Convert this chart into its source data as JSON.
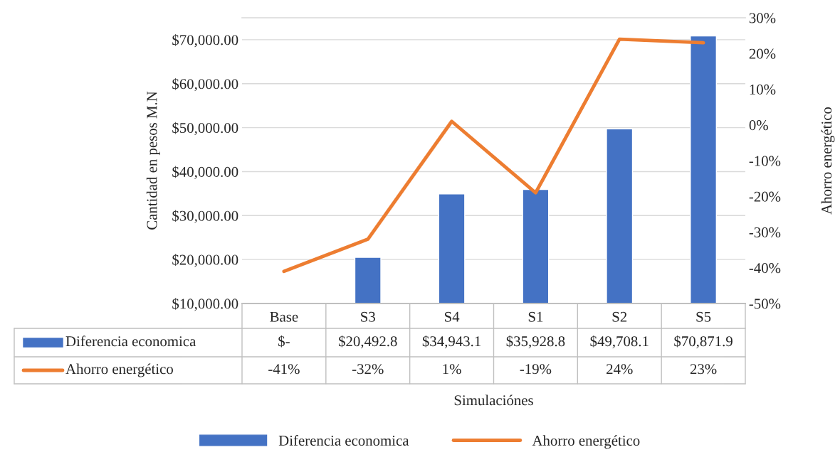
{
  "chart_data": {
    "type": "bar",
    "categories": [
      "Base",
      "S3",
      "S4",
      "S1",
      "S2",
      "S5"
    ],
    "xlabel": "Simulaciónes",
    "ylabel": "Cantidad en pesos M.N",
    "y2label": "Ahorro energético",
    "series": [
      {
        "name": "Diferencia economica",
        "color": "#4472c4",
        "values": [
          null,
          20492.8,
          34943.1,
          35928.8,
          49708.1,
          70871.9
        ],
        "value_labels": [
          "$-",
          "$20,492.8",
          "$34,943.1",
          "$35,928.8",
          "$49,708.1",
          "$70,871.9"
        ]
      },
      {
        "name": "Ahorro energético",
        "type": "line",
        "axis": "y2",
        "color": "#ed7d31",
        "values": [
          -41,
          -32,
          1,
          -19,
          24,
          23
        ],
        "value_labels": [
          "-41%",
          "-32%",
          "1%",
          "-19%",
          "24%",
          "23%"
        ]
      }
    ],
    "ylim": [
      10000,
      75000
    ],
    "yticks": [
      {
        "value": 10000,
        "label": "$10,000.00"
      },
      {
        "value": 20000,
        "label": "$20,000.00"
      },
      {
        "value": 30000,
        "label": "$30,000.00"
      },
      {
        "value": 40000,
        "label": "$40,000.00"
      },
      {
        "value": 50000,
        "label": "$50,000.00"
      },
      {
        "value": 60000,
        "label": "$60,000.00"
      },
      {
        "value": 70000,
        "label": "$70,000.00"
      }
    ],
    "y2lim": [
      -50,
      30
    ],
    "y2ticks": [
      {
        "value": -50,
        "label": "-50%"
      },
      {
        "value": -40,
        "label": "-40%"
      },
      {
        "value": -30,
        "label": "-30%"
      },
      {
        "value": -20,
        "label": "-20%"
      },
      {
        "value": -10,
        "label": "-10%"
      },
      {
        "value": 0,
        "label": "0%"
      },
      {
        "value": 10,
        "label": "10%"
      },
      {
        "value": 20,
        "label": "20%"
      },
      {
        "value": 30,
        "label": "30%"
      }
    ],
    "grid": "y",
    "legend": "bottom"
  }
}
